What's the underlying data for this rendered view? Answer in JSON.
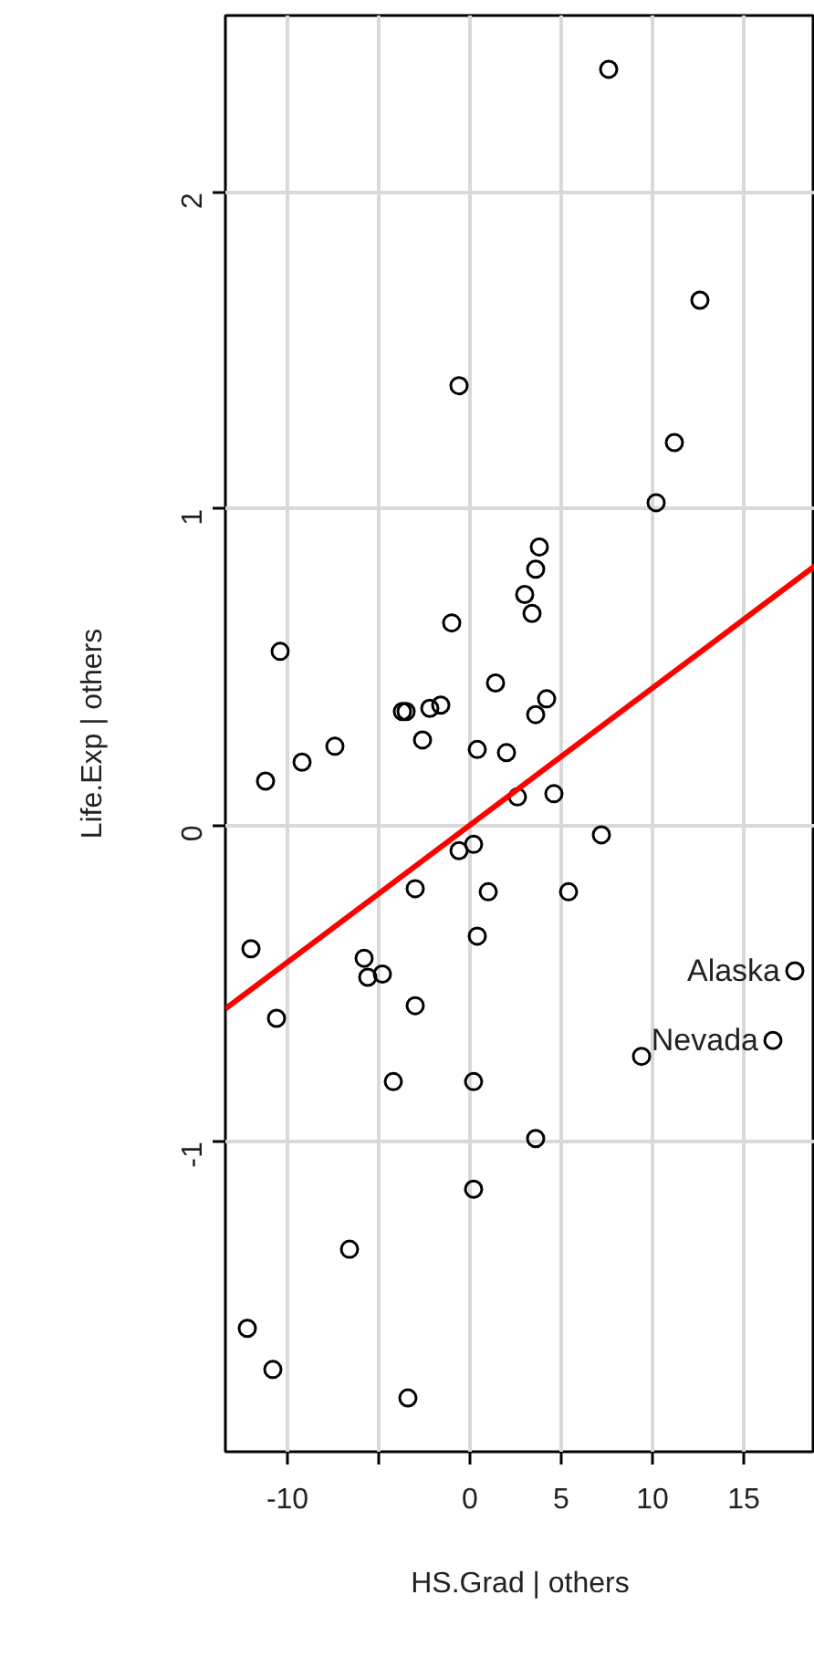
{
  "chart_data": {
    "type": "scatter",
    "xlabel": "HS.Grad | others",
    "ylabel": "Life.Exp | others",
    "xlim": [
      -13.4,
      18.9
    ],
    "ylim": [
      -1.98,
      2.56
    ],
    "xticks": [
      -10,
      {
        "value": -5,
        "label": null
      },
      0,
      5,
      10,
      15
    ],
    "yticks": [
      -1,
      0,
      1,
      2
    ],
    "grid": true,
    "series": [
      {
        "marker": "circle",
        "color": "#000000",
        "x": [
          7.6,
          12.6,
          11.2,
          -0.6,
          10.2,
          3.8,
          3.6,
          3.0,
          3.4,
          -1.0,
          -10.4,
          1.4,
          4.2,
          3.6,
          -1.6,
          -2.2,
          -3.5,
          -3.7,
          -7.4,
          -2.6,
          -9.2,
          0.4,
          2.0,
          -11.2,
          2.6,
          4.6,
          7.2,
          -0.6,
          0.2,
          -3.0,
          1.0,
          5.4,
          0.4,
          -12.0,
          -5.8,
          -4.8,
          -5.6,
          -3.0,
          -10.6,
          17.8,
          16.6,
          9.4,
          -4.2,
          0.2,
          3.6,
          0.2,
          -6.6,
          -12.2,
          -10.8,
          -3.4
        ],
        "values": [
          2.39,
          1.66,
          1.21,
          1.39,
          1.02,
          0.88,
          0.81,
          0.73,
          0.67,
          0.64,
          0.55,
          0.45,
          0.4,
          0.35,
          0.38,
          0.37,
          0.36,
          0.36,
          0.25,
          0.27,
          0.2,
          0.24,
          0.23,
          0.14,
          0.09,
          0.1,
          -0.03,
          -0.08,
          -0.06,
          -0.2,
          -0.21,
          -0.21,
          -0.35,
          -0.39,
          -0.42,
          -0.47,
          -0.48,
          -0.57,
          -0.61,
          -0.46,
          -0.68,
          -0.73,
          -0.81,
          -0.81,
          -0.99,
          -1.15,
          -1.34,
          -1.59,
          -1.72,
          -1.81
        ]
      },
      {
        "type": "line",
        "marker": "none",
        "color": "#ff0000",
        "x": [
          -13.4,
          18.9
        ],
        "values": [
          -0.58,
          0.82
        ]
      }
    ],
    "annotations": [
      {
        "text": "Alaska",
        "x": 17.8,
        "y": -0.46
      },
      {
        "text": "Nevada",
        "x": 16.6,
        "y": -0.68
      }
    ]
  }
}
